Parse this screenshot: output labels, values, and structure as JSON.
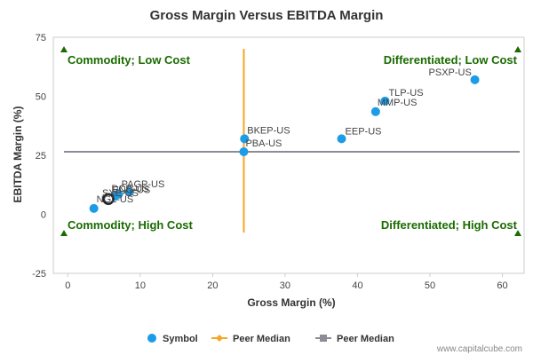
{
  "chart_data": {
    "type": "scatter",
    "title": "Gross Margin Versus EBITDA Margin",
    "xlabel": "Gross Margin (%)",
    "ylabel": "EBITDA Margin (%)",
    "xlim": [
      -2,
      63
    ],
    "ylim": [
      -25,
      75
    ],
    "xticks": [
      "0",
      "10",
      "20",
      "30",
      "40",
      "50",
      "60"
    ],
    "yticks": [
      "-25",
      "0",
      "25",
      "50",
      "75"
    ],
    "points": [
      {
        "label": "PSXP-US",
        "x": 56.2,
        "y": 57.0
      },
      {
        "label": "TLP-US",
        "x": 43.8,
        "y": 48.0
      },
      {
        "label": "MMP-US",
        "x": 42.5,
        "y": 43.5
      },
      {
        "label": "EEP-US",
        "x": 37.8,
        "y": 32.0
      },
      {
        "label": "BKEP-US",
        "x": 24.4,
        "y": 32.0
      },
      {
        "label": "PBA-US",
        "x": 24.3,
        "y": 26.5
      },
      {
        "label": "PAGP-US",
        "x": 8.5,
        "y": 9.5
      },
      {
        "label": "DCP-US",
        "x": 7.0,
        "y": 8.5
      },
      {
        "label": "ENG-US",
        "x": 6.4,
        "y": 7.5
      },
      {
        "label": "NGL-US",
        "x": 3.6,
        "y": 2.5
      },
      {
        "label": "SXE-US",
        "x": 5.6,
        "y": 6.5,
        "highlight": true
      }
    ],
    "peer_median_x": 24.3,
    "peer_median_y": 26.5,
    "quadrants": {
      "top_left": "Commodity; Low Cost",
      "top_right": "Differentiated; Low Cost",
      "bottom_left": "Commodity; High Cost",
      "bottom_right": "Differentiated; High Cost"
    },
    "legend": {
      "placement": "bottom",
      "items": [
        {
          "label": "Symbol",
          "color": "#1c9be6"
        },
        {
          "label": "Peer Median",
          "color": "#f5a623"
        },
        {
          "label": "Peer Median",
          "color": "#8c8c96"
        }
      ]
    },
    "colors": {
      "point": "#1c9be6",
      "vertical_median": "#f5a623",
      "horizontal_median": "#8c8c96",
      "quadrant_text": "#1a6b00",
      "marker": "#1a6b00"
    },
    "credit": "www.capitalcube.com"
  }
}
